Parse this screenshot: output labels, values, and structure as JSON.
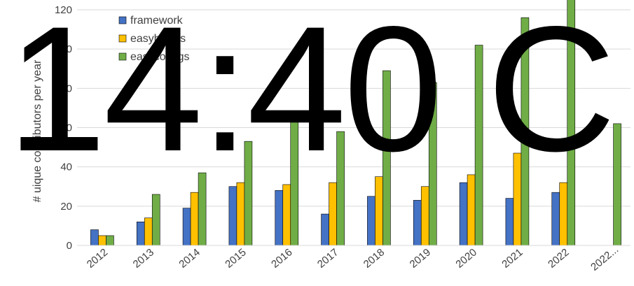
{
  "chart_data": {
    "type": "bar",
    "categories": [
      "2012",
      "2013",
      "2014",
      "2015",
      "2016",
      "2017",
      "2018",
      "2019",
      "2020",
      "2021",
      "2022",
      "2022..."
    ],
    "series": [
      {
        "name": "framework",
        "color": "#4472C4",
        "values": [
          8,
          12,
          19,
          30,
          28,
          16,
          25,
          23,
          32,
          24,
          27,
          null
        ]
      },
      {
        "name": "easyblocks",
        "color": "#FFC000",
        "values": [
          5,
          14,
          27,
          32,
          31,
          32,
          35,
          30,
          36,
          47,
          32,
          null
        ]
      },
      {
        "name": "easyconfigs",
        "color": "#70AD47",
        "values": [
          5,
          26,
          37,
          53,
          65,
          58,
          89,
          83,
          102,
          116,
          128,
          62
        ]
      }
    ],
    "legend_labels": [
      "framework",
      "easyblocks",
      "easyconfigs"
    ],
    "ylabel": "# uique contributors per year",
    "xlabel": "",
    "title": "",
    "ylim": [
      0,
      120
    ],
    "yticks": [
      0,
      20,
      40,
      60,
      80,
      100,
      120
    ],
    "grid": true,
    "legend_position": "top-left"
  },
  "overlay_text": "14:40 C"
}
